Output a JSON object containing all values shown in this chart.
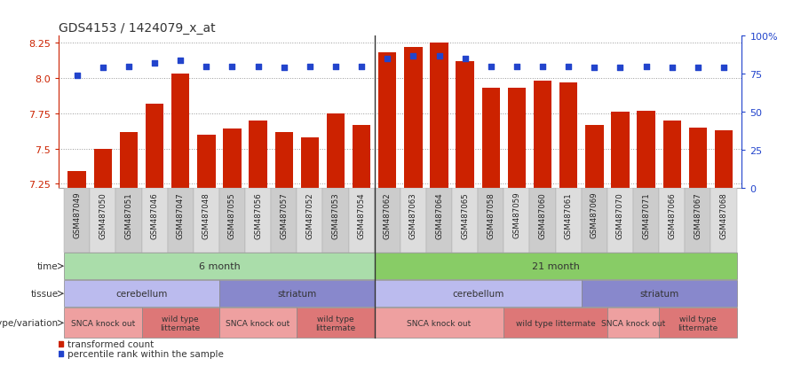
{
  "title": "GDS4153 / 1424079_x_at",
  "samples": [
    "GSM487049",
    "GSM487050",
    "GSM487051",
    "GSM487046",
    "GSM487047",
    "GSM487048",
    "GSM487055",
    "GSM487056",
    "GSM487057",
    "GSM487052",
    "GSM487053",
    "GSM487054",
    "GSM487062",
    "GSM487063",
    "GSM487064",
    "GSM487065",
    "GSM487058",
    "GSM487059",
    "GSM487060",
    "GSM487061",
    "GSM487069",
    "GSM487070",
    "GSM487071",
    "GSM487066",
    "GSM487067",
    "GSM487068"
  ],
  "bar_values": [
    7.34,
    7.5,
    7.62,
    7.82,
    8.03,
    7.6,
    7.64,
    7.7,
    7.62,
    7.58,
    7.75,
    7.67,
    8.18,
    8.22,
    8.25,
    8.12,
    7.93,
    7.93,
    7.98,
    7.97,
    7.67,
    7.76,
    7.77,
    7.7,
    7.65,
    7.63
  ],
  "blue_values": [
    74,
    79,
    80,
    82,
    84,
    80,
    80,
    80,
    79,
    80,
    80,
    80,
    85,
    87,
    87,
    85,
    80,
    80,
    80,
    80,
    79,
    79,
    80,
    79,
    79,
    79
  ],
  "ylim_left": [
    7.22,
    8.3
  ],
  "ylim_right": [
    0,
    100
  ],
  "yticks_left": [
    7.25,
    7.5,
    7.75,
    8.0,
    8.25
  ],
  "yticks_right": [
    0,
    25,
    50,
    75,
    100
  ],
  "ytick_labels_right": [
    "0",
    "25",
    "50",
    "75",
    "100%"
  ],
  "bar_color": "#CC2200",
  "blue_color": "#2244CC",
  "grid_color": "#888888",
  "bg_color": "#FFFFFF",
  "xticklabel_bg": "#CCCCCC",
  "time_row": [
    {
      "label": "6 month",
      "start": 0,
      "end": 12,
      "color": "#AADDAA"
    },
    {
      "label": "21 month",
      "start": 12,
      "end": 26,
      "color": "#88CC66"
    }
  ],
  "tissue_row": [
    {
      "label": "cerebellum",
      "start": 0,
      "end": 6,
      "color": "#BBBBEE"
    },
    {
      "label": "striatum",
      "start": 6,
      "end": 12,
      "color": "#8888CC"
    },
    {
      "label": "cerebellum",
      "start": 12,
      "end": 20,
      "color": "#BBBBEE"
    },
    {
      "label": "striatum",
      "start": 20,
      "end": 26,
      "color": "#8888CC"
    }
  ],
  "geno_row": [
    {
      "label": "SNCA knock out",
      "start": 0,
      "end": 3,
      "color": "#EEA0A0"
    },
    {
      "label": "wild type\nlittermate",
      "start": 3,
      "end": 6,
      "color": "#DD7777"
    },
    {
      "label": "SNCA knock out",
      "start": 6,
      "end": 9,
      "color": "#EEA0A0"
    },
    {
      "label": "wild type\nlittermate",
      "start": 9,
      "end": 12,
      "color": "#DD7777"
    },
    {
      "label": "SNCA knock out",
      "start": 12,
      "end": 17,
      "color": "#EEA0A0"
    },
    {
      "label": "wild type littermate",
      "start": 17,
      "end": 21,
      "color": "#DD7777"
    },
    {
      "label": "SNCA knock out",
      "start": 21,
      "end": 23,
      "color": "#EEA0A0"
    },
    {
      "label": "wild type\nlittermate",
      "start": 23,
      "end": 26,
      "color": "#DD7777"
    }
  ],
  "legend_bar_label": "transformed count",
  "legend_dot_label": "percentile rank within the sample",
  "row_labels": [
    "time",
    "tissue",
    "genotype/variation"
  ],
  "separator_idx": 11.5
}
